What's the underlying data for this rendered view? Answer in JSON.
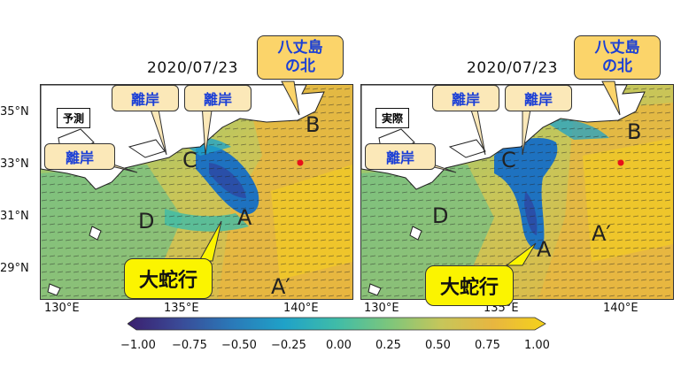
{
  "panels": [
    {
      "date": "2020/07/23",
      "tag": "予測",
      "callouts": [
        "離岸",
        "離岸",
        "離岸"
      ],
      "northLabel": [
        "八丈島",
        "の北"
      ],
      "snakeLabel": "大蛇行",
      "letters": {
        "A": "A",
        "B": "B",
        "C": "C",
        "D": "D",
        "Aprime": "A′"
      }
    },
    {
      "date": "2020/07/23",
      "tag": "実際",
      "callouts": [
        "離岸",
        "離岸",
        "離岸"
      ],
      "northLabel": [
        "八丈島",
        "の北"
      ],
      "snakeLabel": "大蛇行",
      "letters": {
        "A": "A",
        "B": "B",
        "C": "C",
        "D": "D",
        "Aprime": "A′"
      }
    }
  ],
  "latLabels": [
    "35°N",
    "33°N",
    "31°N",
    "29°N"
  ],
  "lonLabels": [
    "130°E",
    "135°E",
    "140°E"
  ],
  "colorbar": {
    "ticks": [
      "−1.00",
      "−0.75",
      "−0.50",
      "−0.25",
      "0.00",
      "0.25",
      "0.50",
      "0.75",
      "1.00"
    ],
    "colors": [
      "#3b1f6e",
      "#3a4a97",
      "#2a79b8",
      "#1fa2c8",
      "#3fbca8",
      "#7cc67c",
      "#c6c65a",
      "#e8b640",
      "#f5d21a"
    ]
  },
  "colors": {
    "current": "#1e72c0",
    "land": "#ffffff",
    "sea": "#e8b640",
    "callout": "#fbe8b8",
    "snake": "#fbf400",
    "marker": "#e8101a"
  }
}
